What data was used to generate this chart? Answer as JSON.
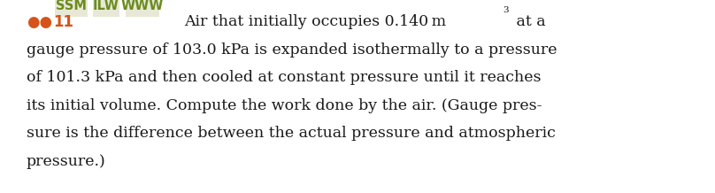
{
  "bg_color": "#ffffff",
  "bullet_color": "#d4541a",
  "number_color": "#d4541a",
  "tag_text_color": "#6b8c1e",
  "tag_bg_color": "#e8e8d6",
  "body_color": "#1a1a1a",
  "bullet_text": "●●",
  "number_text": "11",
  "tags": [
    "SSM",
    "ILW",
    "WWW"
  ],
  "line1_pre": "Air that initially occupies 0.140 m",
  "line1_sup": "3",
  "line1_post": " at a",
  "line2": "gauge pressure of 103.0 kPa is expanded isothermally to a pressure",
  "line3": "of 101.3 kPa and then cooled at constant pressure until it reaches",
  "line4": "its initial volume. Compute the work done by the air. (Gauge pres-",
  "line5": "sure is the difference between the actual pressure and atmospheric",
  "line6": "pressure.)",
  "dpi": 100,
  "fig_w": 8.08,
  "fig_h": 2.18
}
